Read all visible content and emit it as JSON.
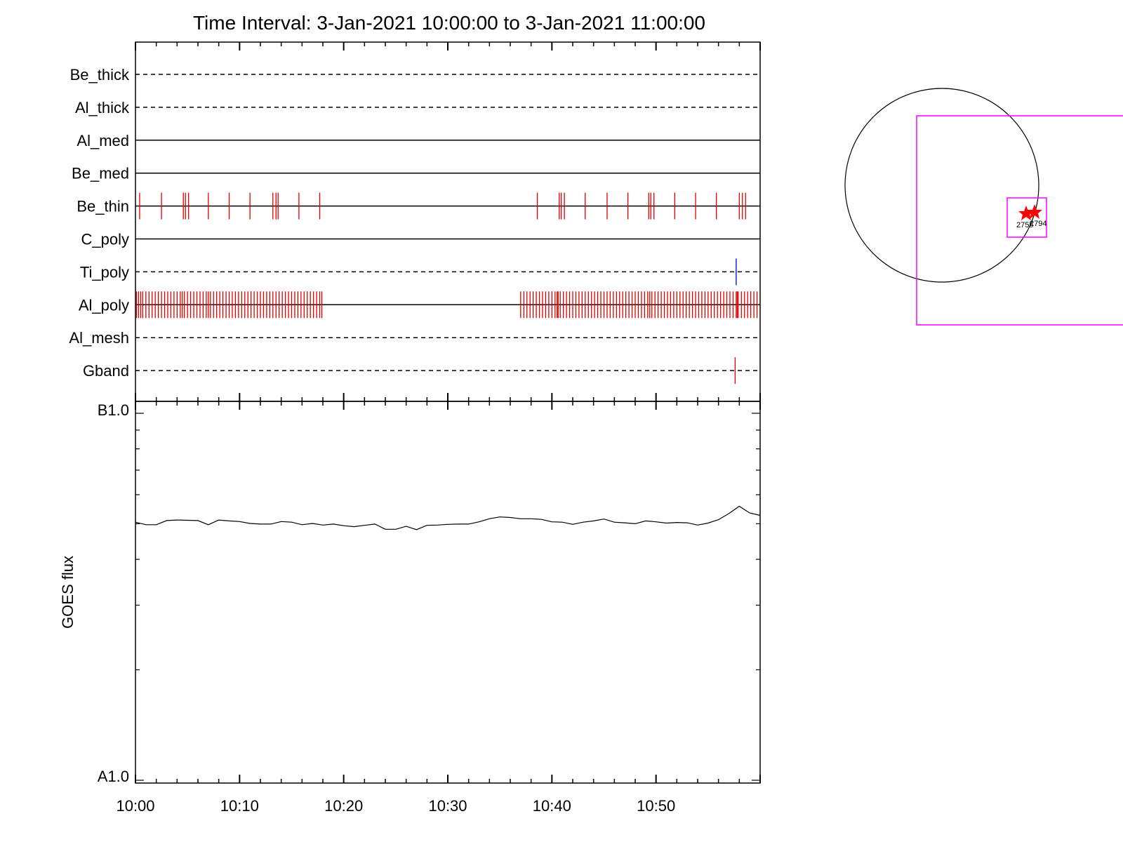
{
  "title": "Time Interval:  3-Jan-2021 10:00:00 to  3-Jan-2021 11:00:00",
  "chart_data": [
    {
      "type": "timeline",
      "channels": [
        {
          "name": "Be_thick",
          "line": "dashed",
          "events": []
        },
        {
          "name": "Al_thick",
          "line": "dashed",
          "events": []
        },
        {
          "name": "Al_med",
          "line": "solid",
          "events": []
        },
        {
          "name": "Be_med",
          "line": "solid",
          "events": []
        },
        {
          "name": "Be_thin",
          "line": "solid",
          "color": "#e00000",
          "events": [
            0.4,
            2.5,
            4.6,
            4.8,
            5.1,
            7.0,
            9.0,
            11.0,
            13.2,
            13.5,
            13.7,
            15.7,
            17.7,
            38.6,
            40.7,
            40.9,
            41.2,
            43.2,
            45.3,
            47.3,
            49.3,
            49.5,
            49.8,
            51.8,
            53.8,
            55.8,
            58.0,
            58.3,
            58.6
          ]
        },
        {
          "name": "C_poly",
          "line": "solid",
          "events": []
        },
        {
          "name": "Ti_poly",
          "line": "dashed",
          "color": "#0000c0",
          "events": [
            57.7
          ]
        },
        {
          "name": "Al_poly",
          "line": "solid",
          "color": "#e00000",
          "events": [
            0.1,
            0.3,
            0.5,
            0.7,
            1.0,
            1.3,
            1.6,
            1.9,
            2.2,
            2.5,
            2.8,
            3.1,
            3.4,
            3.7,
            4.0,
            4.3,
            4.5,
            4.7,
            5.0,
            5.3,
            5.6,
            5.9,
            6.2,
            6.5,
            6.8,
            7.0,
            7.2,
            7.5,
            7.8,
            8.1,
            8.4,
            8.7,
            9.0,
            9.3,
            9.6,
            9.9,
            10.2,
            10.5,
            10.8,
            11.1,
            11.4,
            11.7,
            12.0,
            12.3,
            12.6,
            12.9,
            13.2,
            13.5,
            13.8,
            14.1,
            14.4,
            14.7,
            15.0,
            15.3,
            15.6,
            15.9,
            16.2,
            16.5,
            16.8,
            17.1,
            17.4,
            17.7,
            17.9,
            37.0,
            37.3,
            37.6,
            37.9,
            38.2,
            38.5,
            38.8,
            39.1,
            39.4,
            39.7,
            40.0,
            40.3,
            40.5,
            40.6,
            40.8,
            41.1,
            41.4,
            41.7,
            42.0,
            42.3,
            42.6,
            42.9,
            43.2,
            43.5,
            43.8,
            44.1,
            44.4,
            44.7,
            45.0,
            45.3,
            45.6,
            45.9,
            46.2,
            46.5,
            46.8,
            47.1,
            47.4,
            47.7,
            48.0,
            48.3,
            48.6,
            48.9,
            49.2,
            49.4,
            49.6,
            49.9,
            50.2,
            50.5,
            50.8,
            51.1,
            51.4,
            51.7,
            52.0,
            52.3,
            52.6,
            52.9,
            53.2,
            53.5,
            53.8,
            54.1,
            54.4,
            54.7,
            55.0,
            55.3,
            55.6,
            55.9,
            56.2,
            56.5,
            56.8,
            57.1,
            57.4,
            57.7,
            57.8,
            57.9,
            58.2,
            58.5,
            58.8,
            59.1,
            59.4,
            59.7
          ]
        },
        {
          "name": "Al_mesh",
          "line": "dashed",
          "events": []
        },
        {
          "name": "Gband",
          "line": "dashed",
          "color": "#e00000",
          "events": [
            57.6
          ]
        }
      ]
    },
    {
      "type": "line",
      "ylabel": "GOES flux",
      "y_tick_labels": [
        "B1.0",
        "A1.0"
      ],
      "x_tick_labels": [
        "10:00",
        "10:10",
        "10:20",
        "10:30",
        "10:40",
        "10:50"
      ],
      "x_units": "minutes after 10:00",
      "xlim": [
        0,
        60
      ],
      "ylim": [
        1e-08,
        1e-07
      ],
      "log_scale": true,
      "series": [
        {
          "x": [
            0,
            1,
            2,
            3,
            4,
            5,
            6,
            7,
            8,
            9,
            10,
            11,
            12,
            13,
            14,
            15,
            16,
            17,
            18,
            19,
            20,
            21,
            22,
            23,
            24,
            25,
            26,
            27,
            28,
            29,
            30,
            31,
            32,
            33,
            34,
            35,
            36,
            37,
            38,
            39,
            40,
            41,
            42,
            43,
            44,
            45,
            46,
            47,
            48,
            49,
            50,
            51,
            52,
            53,
            54,
            55,
            56,
            57,
            58,
            59,
            60
          ],
          "y": [
            5.05e-08,
            4.97e-08,
            4.97e-08,
            5.1e-08,
            5.12e-08,
            5.11e-08,
            5.1e-08,
            4.97e-08,
            5.12e-08,
            5.09e-08,
            5.07e-08,
            5.01e-08,
            4.99e-08,
            4.99e-08,
            5.07e-08,
            5.05e-08,
            4.97e-08,
            5.01e-08,
            4.96e-08,
            4.99e-08,
            4.94e-08,
            4.91e-08,
            4.95e-08,
            4.99e-08,
            4.83e-08,
            4.83e-08,
            4.92e-08,
            4.82e-08,
            4.95e-08,
            4.96e-08,
            4.98e-08,
            4.99e-08,
            4.99e-08,
            5.06e-08,
            5.16e-08,
            5.22e-08,
            5.2e-08,
            5.16e-08,
            5.16e-08,
            5.14e-08,
            5.06e-08,
            5.05e-08,
            4.98e-08,
            5.05e-08,
            5.09e-08,
            5.15e-08,
            5.05e-08,
            5.03e-08,
            5e-08,
            5.09e-08,
            5.06e-08,
            5.02e-08,
            5.04e-08,
            5.03e-08,
            4.96e-08,
            5.02e-08,
            5.13e-08,
            5.33e-08,
            5.58e-08,
            5.35e-08,
            5.27e-08
          ]
        }
      ]
    }
  ],
  "sun_map": {
    "labels": [
      "2755",
      "2794"
    ],
    "box_color": "#ff00ff",
    "star_color": "#ff0000"
  }
}
